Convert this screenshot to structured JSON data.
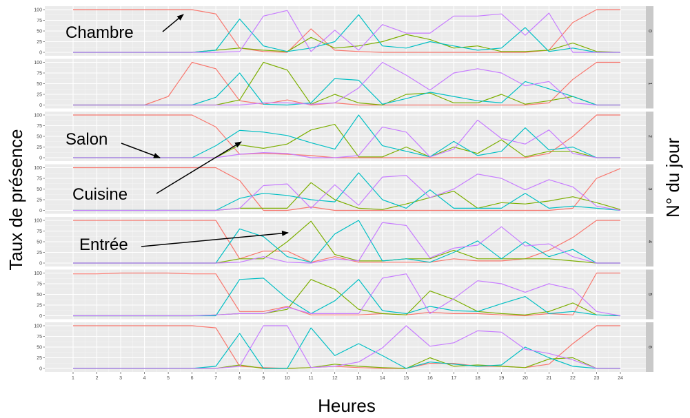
{
  "chart_data": {
    "type": "line",
    "xlabel": "Heures",
    "ylabel": "Taux de présence",
    "strip_label": "N° du jour",
    "x_ticks": [
      "1",
      "2",
      "3",
      "4",
      "5",
      "6",
      "7",
      "8",
      "9",
      "10",
      "11",
      "12",
      "13",
      "14",
      "15",
      "16",
      "17",
      "18",
      "19",
      "20",
      "21",
      "22",
      "23",
      "24"
    ],
    "y_ticks": [
      "0",
      "25",
      "50",
      "75",
      "100"
    ],
    "xlim": [
      1,
      24
    ],
    "ylim": [
      0,
      100
    ],
    "grid": true,
    "colors": {
      "Chambre": "#f8766d",
      "Entrée": "#7cae00",
      "Cuisine": "#00bfc4",
      "Salon": "#c77cff"
    },
    "annotations": [
      {
        "text": "Chambre",
        "target_series": "Chambre",
        "panel": 0
      },
      {
        "text": "Salon",
        "target_series": "Salon",
        "panel": 2
      },
      {
        "text": "Cuisine",
        "target_series": "Cuisine",
        "panel": 2
      },
      {
        "text": "Entrée",
        "target_series": "Entrée",
        "panel": 4
      }
    ],
    "panels": [
      {
        "day": "0",
        "series": [
          {
            "name": "Chambre",
            "values": [
              100,
              100,
              100,
              100,
              100,
              100,
              90,
              10,
              2,
              0,
              55,
              5,
              2,
              0,
              0,
              0,
              0,
              0,
              0,
              0,
              5,
              70,
              100,
              100
            ]
          },
          {
            "name": "Entrée",
            "values": [
              0,
              0,
              0,
              0,
              0,
              0,
              5,
              10,
              5,
              2,
              35,
              10,
              15,
              25,
              42,
              30,
              10,
              15,
              2,
              2,
              5,
              22,
              2,
              0
            ]
          },
          {
            "name": "Cuisine",
            "values": [
              0,
              0,
              0,
              0,
              0,
              0,
              5,
              78,
              15,
              2,
              10,
              25,
              88,
              15,
              10,
              25,
              15,
              5,
              10,
              58,
              2,
              10,
              0,
              0
            ]
          },
          {
            "name": "Salon",
            "values": [
              0,
              0,
              0,
              0,
              0,
              0,
              0,
              2,
              85,
              98,
              2,
              52,
              5,
              65,
              45,
              45,
              85,
              85,
              90,
              40,
              92,
              0,
              0,
              0
            ]
          }
        ]
      },
      {
        "day": "1",
        "series": [
          {
            "name": "Chambre",
            "values": [
              0,
              0,
              0,
              0,
              20,
              100,
              85,
              10,
              2,
              12,
              0,
              5,
              0,
              0,
              0,
              0,
              0,
              0,
              0,
              0,
              5,
              60,
              100,
              100
            ]
          },
          {
            "name": "Entrée",
            "values": [
              0,
              0,
              0,
              0,
              0,
              0,
              0,
              12,
              100,
              82,
              2,
              25,
              5,
              0,
              25,
              28,
              5,
              5,
              25,
              2,
              10,
              20,
              0,
              0
            ]
          },
          {
            "name": "Cuisine",
            "values": [
              0,
              0,
              0,
              0,
              0,
              0,
              18,
              75,
              2,
              0,
              5,
              62,
              58,
              2,
              15,
              30,
              20,
              10,
              5,
              55,
              38,
              20,
              0,
              0
            ]
          },
          {
            "name": "Salon",
            "values": [
              0,
              0,
              0,
              0,
              0,
              0,
              0,
              0,
              5,
              5,
              2,
              5,
              40,
              100,
              70,
              35,
              75,
              85,
              75,
              45,
              55,
              5,
              0,
              0
            ]
          }
        ]
      },
      {
        "day": "2",
        "series": [
          {
            "name": "Chambre",
            "values": [
              100,
              100,
              100,
              100,
              100,
              100,
              72,
              8,
              10,
              8,
              5,
              0,
              0,
              0,
              0,
              0,
              0,
              0,
              0,
              0,
              10,
              50,
              100,
              100
            ]
          },
          {
            "name": "Entrée",
            "values": [
              0,
              0,
              0,
              0,
              0,
              0,
              0,
              30,
              22,
              32,
              65,
              78,
              2,
              2,
              25,
              2,
              25,
              10,
              42,
              2,
              15,
              15,
              0,
              0
            ]
          },
          {
            "name": "Cuisine",
            "values": [
              0,
              0,
              0,
              0,
              0,
              0,
              28,
              64,
              60,
              52,
              35,
              20,
              100,
              28,
              15,
              2,
              38,
              5,
              15,
              70,
              18,
              25,
              0,
              0
            ]
          },
          {
            "name": "Salon",
            "values": [
              0,
              0,
              0,
              0,
              0,
              0,
              0,
              8,
              12,
              10,
              0,
              0,
              5,
              72,
              60,
              2,
              20,
              88,
              45,
              32,
              65,
              10,
              0,
              0
            ]
          }
        ]
      },
      {
        "day": "3",
        "series": [
          {
            "name": "Chambre",
            "values": [
              100,
              100,
              100,
              100,
              100,
              100,
              100,
              70,
              0,
              0,
              8,
              0,
              0,
              0,
              0,
              0,
              0,
              0,
              0,
              0,
              0,
              5,
              75,
              98
            ]
          },
          {
            "name": "Entrée",
            "values": [
              0,
              0,
              0,
              0,
              0,
              0,
              0,
              5,
              5,
              5,
              65,
              25,
              5,
              2,
              15,
              30,
              45,
              5,
              18,
              15,
              22,
              32,
              18,
              2
            ]
          },
          {
            "name": "Cuisine",
            "values": [
              0,
              0,
              0,
              0,
              0,
              0,
              0,
              28,
              40,
              35,
              25,
              20,
              88,
              25,
              5,
              48,
              5,
              5,
              5,
              40,
              5,
              10,
              5,
              0
            ]
          },
          {
            "name": "Salon",
            "values": [
              0,
              0,
              0,
              0,
              0,
              0,
              0,
              5,
              58,
              62,
              5,
              60,
              12,
              78,
              82,
              30,
              50,
              85,
              75,
              48,
              72,
              55,
              10,
              0
            ]
          }
        ]
      },
      {
        "day": "4",
        "series": [
          {
            "name": "Chambre",
            "values": [
              100,
              100,
              100,
              100,
              100,
              100,
              100,
              10,
              28,
              28,
              2,
              15,
              2,
              2,
              2,
              2,
              10,
              5,
              5,
              10,
              30,
              60,
              100,
              100
            ]
          },
          {
            "name": "Entrée",
            "values": [
              0,
              0,
              0,
              0,
              0,
              0,
              0,
              10,
              10,
              50,
              98,
              20,
              5,
              5,
              10,
              10,
              30,
              10,
              10,
              10,
              10,
              5,
              0,
              0
            ]
          },
          {
            "name": "Cuisine",
            "values": [
              0,
              0,
              0,
              0,
              0,
              0,
              0,
              80,
              62,
              15,
              2,
              68,
              100,
              5,
              10,
              2,
              25,
              52,
              10,
              50,
              15,
              32,
              0,
              0
            ]
          },
          {
            "name": "Salon",
            "values": [
              0,
              0,
              0,
              0,
              0,
              0,
              0,
              2,
              15,
              2,
              0,
              10,
              5,
              95,
              88,
              12,
              35,
              42,
              85,
              40,
              45,
              15,
              0,
              0
            ]
          }
        ]
      },
      {
        "day": "5",
        "series": [
          {
            "name": "Chambre",
            "values": [
              98,
              98,
              100,
              100,
              100,
              98,
              98,
              10,
              10,
              22,
              2,
              2,
              2,
              5,
              2,
              8,
              5,
              5,
              2,
              0,
              5,
              2,
              100,
              100
            ]
          },
          {
            "name": "Entrée",
            "values": [
              0,
              0,
              0,
              0,
              0,
              0,
              2,
              5,
              5,
              15,
              85,
              62,
              15,
              5,
              2,
              58,
              38,
              10,
              5,
              2,
              10,
              30,
              2,
              0
            ]
          },
          {
            "name": "Cuisine",
            "values": [
              0,
              0,
              0,
              0,
              0,
              0,
              0,
              85,
              88,
              40,
              5,
              35,
              85,
              12,
              5,
              22,
              12,
              10,
              28,
              45,
              5,
              10,
              2,
              0
            ]
          },
          {
            "name": "Salon",
            "values": [
              0,
              0,
              0,
              0,
              0,
              0,
              2,
              5,
              5,
              20,
              5,
              5,
              5,
              88,
              98,
              5,
              40,
              82,
              75,
              55,
              75,
              62,
              10,
              0
            ]
          }
        ]
      },
      {
        "day": "6",
        "series": [
          {
            "name": "Chambre",
            "values": [
              100,
              100,
              100,
              100,
              100,
              100,
              95,
              5,
              2,
              0,
              2,
              5,
              2,
              0,
              0,
              12,
              12,
              5,
              5,
              2,
              10,
              58,
              100,
              100
            ]
          },
          {
            "name": "Entrée",
            "values": [
              0,
              0,
              0,
              0,
              0,
              0,
              0,
              8,
              0,
              0,
              2,
              10,
              5,
              2,
              0,
              25,
              5,
              8,
              5,
              2,
              22,
              25,
              0,
              0
            ]
          },
          {
            "name": "Cuisine",
            "values": [
              0,
              0,
              0,
              0,
              0,
              0,
              5,
              82,
              0,
              0,
              95,
              30,
              58,
              30,
              0,
              15,
              10,
              5,
              8,
              50,
              25,
              5,
              0,
              0
            ]
          },
          {
            "name": "Salon",
            "values": [
              0,
              0,
              0,
              0,
              0,
              0,
              0,
              5,
              100,
              100,
              2,
              5,
              15,
              48,
              100,
              52,
              60,
              88,
              85,
              45,
              35,
              20,
              0,
              0
            ]
          }
        ]
      }
    ]
  }
}
